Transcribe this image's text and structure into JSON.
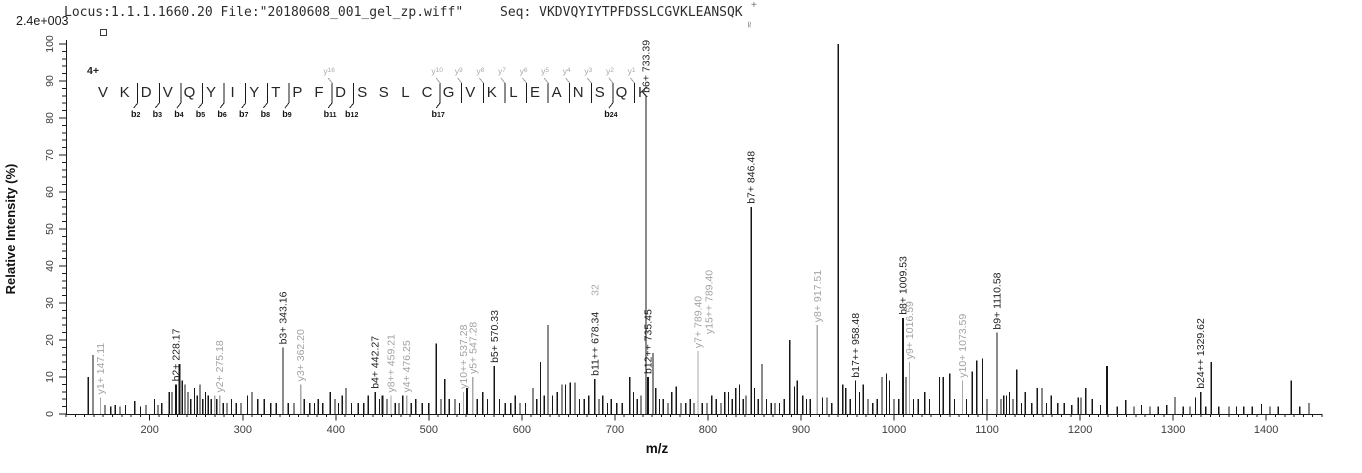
{
  "header": {
    "locus_file": "Locus:1.1.1.1660.20 File:\"20180608_001_gel_zp.wiff\"",
    "seq": "Seq: VKDVQYIYTPFDSSLCGVKLEANSQK",
    "intensity_scale": "2.4e+003",
    "precursor_mark_top": "+",
    "precursor_mark_bottom": "≃"
  },
  "chart_data": {
    "type": "bar",
    "subtype": "ms2-centroid-spectrum",
    "xlabel": "m/z",
    "ylabel": "Relative Intensity (%)",
    "xlim": [
      110,
      1460
    ],
    "ylim": [
      0,
      100
    ],
    "xticks": [
      200,
      300,
      400,
      500,
      600,
      700,
      800,
      900,
      1000,
      1100,
      1200,
      1300,
      1400
    ],
    "ytick_step": 10,
    "grid": false,
    "colors": {
      "peak": "#161616",
      "matched_y": "#a8a8a8",
      "label_b": "#1f1f1f",
      "label_y": "#a3a3a3"
    },
    "precursor_charge": "4+",
    "sequence": [
      {
        "aa": "V"
      },
      {
        "aa": "K"
      },
      {
        "aa": "D",
        "b": "b2"
      },
      {
        "aa": "V",
        "b": "b3"
      },
      {
        "aa": "Q",
        "b": "b4"
      },
      {
        "aa": "Y",
        "b": "b5"
      },
      {
        "aa": "I",
        "b": "b6"
      },
      {
        "aa": "Y",
        "b": "b7"
      },
      {
        "aa": "T",
        "b": "b8"
      },
      {
        "aa": "P",
        "b": "b9"
      },
      {
        "aa": "F"
      },
      {
        "aa": "D",
        "b": "b11",
        "y": "y16"
      },
      {
        "aa": "S",
        "b": "b12"
      },
      {
        "aa": "S"
      },
      {
        "aa": "L"
      },
      {
        "aa": "C"
      },
      {
        "aa": "G",
        "b": "b17",
        "y": "y10"
      },
      {
        "aa": "V",
        "y": "y9"
      },
      {
        "aa": "K",
        "y": "y8"
      },
      {
        "aa": "L",
        "y": "y7"
      },
      {
        "aa": "E",
        "y": "y6"
      },
      {
        "aa": "A",
        "y": "y5"
      },
      {
        "aa": "N",
        "y": "y4"
      },
      {
        "aa": "S",
        "y": "y3"
      },
      {
        "aa": "Q",
        "y": "y2",
        "b": "b24"
      },
      {
        "aa": "K",
        "y": "y1"
      }
    ],
    "peaks": [
      {
        "m": 134,
        "i": 10
      },
      {
        "m": 139,
        "i": 16
      },
      {
        "m": 147.11,
        "i": 4.5,
        "g": 1,
        "l": "y1+ 147.11"
      },
      {
        "m": 152,
        "i": 2.5
      },
      {
        "m": 158,
        "i": 2
      },
      {
        "m": 163,
        "i": 2.5
      },
      {
        "m": 168,
        "i": 2
      },
      {
        "m": 174,
        "i": 2.5
      },
      {
        "m": 184,
        "i": 3.5
      },
      {
        "m": 190,
        "i": 2
      },
      {
        "m": 196,
        "i": 2.5
      },
      {
        "m": 205,
        "i": 4
      },
      {
        "m": 209,
        "i": 2.5
      },
      {
        "m": 213,
        "i": 3
      },
      {
        "m": 221,
        "i": 6
      },
      {
        "m": 224,
        "i": 6
      },
      {
        "m": 228.17,
        "i": 8,
        "w": 2,
        "l": "b2+ 228.17"
      },
      {
        "m": 232,
        "i": 13.5,
        "w": 2
      },
      {
        "m": 235,
        "i": 9
      },
      {
        "m": 238,
        "i": 8
      },
      {
        "m": 241,
        "i": 6
      },
      {
        "m": 244,
        "i": 4
      },
      {
        "m": 248,
        "i": 7
      },
      {
        "m": 251,
        "i": 5
      },
      {
        "m": 254,
        "i": 8
      },
      {
        "m": 257,
        "i": 4
      },
      {
        "m": 260,
        "i": 6
      },
      {
        "m": 263,
        "i": 5
      },
      {
        "m": 266,
        "i": 4
      },
      {
        "m": 270,
        "i": 5,
        "g": 1
      },
      {
        "m": 272,
        "i": 4
      },
      {
        "m": 275.18,
        "i": 5,
        "g": 1,
        "l": "y2+ 275.18"
      },
      {
        "m": 279,
        "i": 3
      },
      {
        "m": 283,
        "i": 3
      },
      {
        "m": 288,
        "i": 4
      },
      {
        "m": 293,
        "i": 3
      },
      {
        "m": 298,
        "i": 3
      },
      {
        "m": 305,
        "i": 5
      },
      {
        "m": 310,
        "i": 6
      },
      {
        "m": 316,
        "i": 4
      },
      {
        "m": 323,
        "i": 4
      },
      {
        "m": 330,
        "i": 3
      },
      {
        "m": 336,
        "i": 3
      },
      {
        "m": 343.16,
        "i": 18,
        "l": "b3+ 343.16"
      },
      {
        "m": 349,
        "i": 3
      },
      {
        "m": 355,
        "i": 3
      },
      {
        "m": 362.2,
        "i": 8,
        "g": 1,
        "l": "y3+ 362.20"
      },
      {
        "m": 366,
        "i": 4
      },
      {
        "m": 372,
        "i": 3
      },
      {
        "m": 377,
        "i": 3
      },
      {
        "m": 381,
        "i": 4
      },
      {
        "m": 386,
        "i": 3
      },
      {
        "m": 394,
        "i": 6
      },
      {
        "m": 399,
        "i": 4
      },
      {
        "m": 403,
        "i": 3
      },
      {
        "m": 407,
        "i": 5
      },
      {
        "m": 411,
        "i": 7
      },
      {
        "m": 417,
        "i": 3
      },
      {
        "m": 424,
        "i": 3
      },
      {
        "m": 430,
        "i": 3
      },
      {
        "m": 435,
        "i": 5
      },
      {
        "m": 442.27,
        "i": 6,
        "l": "b4+ 442.27"
      },
      {
        "m": 447,
        "i": 4
      },
      {
        "m": 450,
        "i": 5,
        "w": 2
      },
      {
        "m": 455,
        "i": 4
      },
      {
        "m": 459.21,
        "i": 5,
        "g": 1,
        "l": "y8++ 459.21"
      },
      {
        "m": 464,
        "i": 3
      },
      {
        "m": 468,
        "i": 3
      },
      {
        "m": 472,
        "i": 5
      },
      {
        "m": 476.25,
        "i": 5,
        "g": 1,
        "l": "y4+ 476.25"
      },
      {
        "m": 481,
        "i": 3
      },
      {
        "m": 486,
        "i": 4
      },
      {
        "m": 493,
        "i": 3
      },
      {
        "m": 500,
        "i": 3
      },
      {
        "m": 508,
        "i": 19
      },
      {
        "m": 513,
        "i": 4
      },
      {
        "m": 517,
        "i": 9.5
      },
      {
        "m": 522,
        "i": 4
      },
      {
        "m": 528,
        "i": 4
      },
      {
        "m": 533,
        "i": 3
      },
      {
        "m": 537.28,
        "i": 6,
        "g": 1,
        "l": "y10++ 537.28"
      },
      {
        "m": 541,
        "i": 7,
        "w": 2
      },
      {
        "m": 547.28,
        "i": 10,
        "g": 1,
        "l": "y5+ 547.28"
      },
      {
        "m": 552,
        "i": 4
      },
      {
        "m": 558,
        "i": 6
      },
      {
        "m": 563,
        "i": 4
      },
      {
        "m": 570.33,
        "i": 13,
        "l": "b5+ 570.33"
      },
      {
        "m": 576,
        "i": 4
      },
      {
        "m": 582,
        "i": 3
      },
      {
        "m": 588,
        "i": 3
      },
      {
        "m": 593,
        "i": 5
      },
      {
        "m": 598,
        "i": 3
      },
      {
        "m": 604,
        "i": 3
      },
      {
        "m": 612,
        "i": 7
      },
      {
        "m": 616,
        "i": 4
      },
      {
        "m": 620,
        "i": 14
      },
      {
        "m": 624,
        "i": 5
      },
      {
        "m": 628,
        "i": 24
      },
      {
        "m": 633,
        "i": 5
      },
      {
        "m": 638,
        "i": 6
      },
      {
        "m": 643,
        "i": 8
      },
      {
        "m": 647,
        "i": 8
      },
      {
        "m": 652,
        "i": 8.5
      },
      {
        "m": 657,
        "i": 8.5
      },
      {
        "m": 662,
        "i": 4
      },
      {
        "m": 667,
        "i": 4
      },
      {
        "m": 672,
        "i": 5
      },
      {
        "m": 678.34,
        "i": 9.5,
        "l": [
          {
            "t": "b11++ 678.34"
          },
          {
            "t": "32",
            "c": "#a9a9a9",
            "dy": -80
          }
        ]
      },
      {
        "m": 683,
        "i": 4
      },
      {
        "m": 687,
        "i": 5
      },
      {
        "m": 692,
        "i": 3
      },
      {
        "m": 696,
        "i": 4
      },
      {
        "m": 702,
        "i": 3
      },
      {
        "m": 708,
        "i": 3
      },
      {
        "m": 716,
        "i": 10
      },
      {
        "m": 720,
        "i": 6
      },
      {
        "m": 724,
        "i": 4
      },
      {
        "m": 728,
        "i": 5
      },
      {
        "m": 733.39,
        "i": 86,
        "l": "b6+ 733.39"
      },
      {
        "m": 735.45,
        "i": 10,
        "w": 2,
        "l": "b12++ 735.45"
      },
      {
        "m": 741,
        "i": 16.5
      },
      {
        "m": 744,
        "i": 7
      },
      {
        "m": 748,
        "i": 4
      },
      {
        "m": 752,
        "i": 4
      },
      {
        "m": 757,
        "i": 3
      },
      {
        "m": 761,
        "i": 6
      },
      {
        "m": 766,
        "i": 7.5
      },
      {
        "m": 771,
        "i": 3
      },
      {
        "m": 776,
        "i": 3
      },
      {
        "m": 781,
        "i": 4
      },
      {
        "m": 785,
        "i": 3
      },
      {
        "m": 789.4,
        "i": 17,
        "g": 1,
        "l": [
          {
            "t": "y7+ 789.40"
          },
          {
            "t": "y15++ 789.40",
            "dx": 11,
            "dy": -14
          }
        ]
      },
      {
        "m": 794,
        "i": 3
      },
      {
        "m": 799,
        "i": 3
      },
      {
        "m": 804,
        "i": 5
      },
      {
        "m": 809,
        "i": 4
      },
      {
        "m": 814,
        "i": 3
      },
      {
        "m": 818,
        "i": 6
      },
      {
        "m": 822,
        "i": 6
      },
      {
        "m": 826,
        "i": 4
      },
      {
        "m": 830,
        "i": 7
      },
      {
        "m": 834,
        "i": 8
      },
      {
        "m": 838,
        "i": 4
      },
      {
        "m": 841,
        "i": 5
      },
      {
        "m": 846.48,
        "i": 56,
        "l": "b7+ 846.48"
      },
      {
        "m": 850,
        "i": 7
      },
      {
        "m": 854,
        "i": 4
      },
      {
        "m": 858,
        "i": 13.5
      },
      {
        "m": 863,
        "i": 4
      },
      {
        "m": 868,
        "i": 3
      },
      {
        "m": 872,
        "i": 3
      },
      {
        "m": 877,
        "i": 3
      },
      {
        "m": 882,
        "i": 4
      },
      {
        "m": 888,
        "i": 20
      },
      {
        "m": 893,
        "i": 7.5
      },
      {
        "m": 896,
        "i": 9
      },
      {
        "m": 902,
        "i": 5
      },
      {
        "m": 906,
        "i": 4
      },
      {
        "m": 910,
        "i": 4
      },
      {
        "m": 917.51,
        "i": 24,
        "g": 1,
        "l": "y8+ 917.51"
      },
      {
        "m": 923,
        "i": 4.5
      },
      {
        "m": 928,
        "i": 4.5
      },
      {
        "m": 933,
        "i": 3
      },
      {
        "m": 940,
        "i": 100
      },
      {
        "m": 945,
        "i": 8
      },
      {
        "m": 948,
        "i": 7
      },
      {
        "m": 953,
        "i": 4
      },
      {
        "m": 958.48,
        "i": 9,
        "l": "b17++ 958.48"
      },
      {
        "m": 963,
        "i": 6
      },
      {
        "m": 967,
        "i": 8
      },
      {
        "m": 972,
        "i": 4
      },
      {
        "m": 977,
        "i": 3
      },
      {
        "m": 982,
        "i": 4
      },
      {
        "m": 987,
        "i": 10
      },
      {
        "m": 992,
        "i": 11
      },
      {
        "m": 995,
        "i": 9
      },
      {
        "m": 1000,
        "i": 4
      },
      {
        "m": 1005,
        "i": 4
      },
      {
        "m": 1009.53,
        "i": 26,
        "w": 2,
        "l": "b8+ 1009.53"
      },
      {
        "m": 1013,
        "i": 10
      },
      {
        "m": 1016.59,
        "i": 14,
        "g": 1,
        "l": "y9+ 1016.59"
      },
      {
        "m": 1021,
        "i": 4
      },
      {
        "m": 1026,
        "i": 4
      },
      {
        "m": 1033,
        "i": 6
      },
      {
        "m": 1038,
        "i": 4
      },
      {
        "m": 1049,
        "i": 10
      },
      {
        "m": 1053,
        "i": 10
      },
      {
        "m": 1060,
        "i": 11
      },
      {
        "m": 1065,
        "i": 4
      },
      {
        "m": 1073.59,
        "i": 9,
        "g": 1,
        "l": "y10+ 1073.59"
      },
      {
        "m": 1078,
        "i": 4
      },
      {
        "m": 1084,
        "i": 11.5
      },
      {
        "m": 1089,
        "i": 14.5
      },
      {
        "m": 1095,
        "i": 15
      },
      {
        "m": 1100,
        "i": 4
      },
      {
        "m": 1110.58,
        "i": 22,
        "l": "b9+ 1110.58"
      },
      {
        "m": 1115,
        "i": 4
      },
      {
        "m": 1118,
        "i": 5
      },
      {
        "m": 1121,
        "i": 5
      },
      {
        "m": 1124,
        "i": 6
      },
      {
        "m": 1128,
        "i": 4
      },
      {
        "m": 1132,
        "i": 12
      },
      {
        "m": 1137,
        "i": 3
      },
      {
        "m": 1141,
        "i": 6
      },
      {
        "m": 1148,
        "i": 3
      },
      {
        "m": 1154,
        "i": 7
      },
      {
        "m": 1159,
        "i": 7
      },
      {
        "m": 1164,
        "i": 3
      },
      {
        "m": 1169,
        "i": 5
      },
      {
        "m": 1176,
        "i": 3
      },
      {
        "m": 1183,
        "i": 3
      },
      {
        "m": 1191,
        "i": 2.5
      },
      {
        "m": 1198,
        "i": 4.5
      },
      {
        "m": 1201,
        "i": 4.5
      },
      {
        "m": 1206,
        "i": 7
      },
      {
        "m": 1213,
        "i": 4
      },
      {
        "m": 1222,
        "i": 2.5
      },
      {
        "m": 1229,
        "i": 13,
        "w": 2
      },
      {
        "m": 1240,
        "i": 2
      },
      {
        "m": 1249,
        "i": 3.8
      },
      {
        "m": 1258,
        "i": 2
      },
      {
        "m": 1266,
        "i": 2.5
      },
      {
        "m": 1275,
        "i": 2
      },
      {
        "m": 1284,
        "i": 2
      },
      {
        "m": 1293,
        "i": 2.5
      },
      {
        "m": 1302,
        "i": 4.6
      },
      {
        "m": 1311,
        "i": 2
      },
      {
        "m": 1318,
        "i": 2
      },
      {
        "m": 1324,
        "i": 4.4
      },
      {
        "m": 1329.62,
        "i": 6,
        "l": "b24++ 1329.62"
      },
      {
        "m": 1335,
        "i": 2
      },
      {
        "m": 1341,
        "i": 14
      },
      {
        "m": 1349,
        "i": 2
      },
      {
        "m": 1360,
        "i": 2
      },
      {
        "m": 1368,
        "i": 2
      },
      {
        "m": 1376,
        "i": 2
      },
      {
        "m": 1385,
        "i": 2
      },
      {
        "m": 1395,
        "i": 2.7
      },
      {
        "m": 1404,
        "i": 2
      },
      {
        "m": 1413,
        "i": 2
      },
      {
        "m": 1427,
        "i": 9
      },
      {
        "m": 1436,
        "i": 2
      },
      {
        "m": 1446,
        "i": 3
      }
    ]
  }
}
